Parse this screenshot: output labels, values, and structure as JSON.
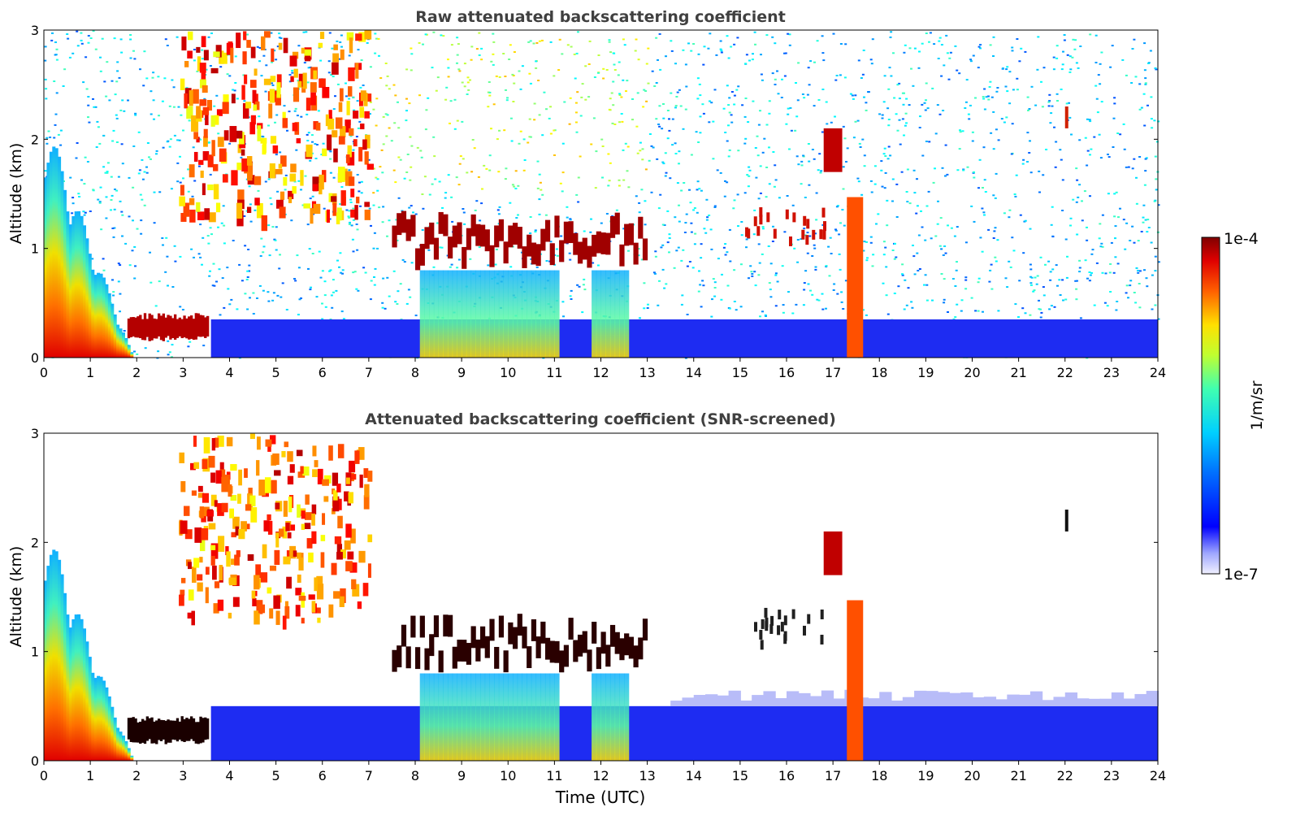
{
  "chart_data": [
    {
      "type": "heatmap",
      "title": "Raw attenuated backscattering coefficient",
      "xlabel": "",
      "ylabel": "Altitude (km)",
      "xlim": [
        0,
        24
      ],
      "ylim": [
        0,
        3
      ],
      "x_ticks": [
        "0",
        "1",
        "2",
        "3",
        "4",
        "5",
        "6",
        "7",
        "8",
        "9",
        "10",
        "11",
        "12",
        "13",
        "14",
        "15",
        "16",
        "17",
        "18",
        "19",
        "20",
        "21",
        "22",
        "23",
        "24"
      ],
      "y_ticks": [
        "0",
        "1",
        "2",
        "3"
      ],
      "screened": false,
      "features": [
        {
          "kind": "boundary_layer",
          "t": [
            3.6,
            24
          ],
          "top_km": 0.35
        },
        {
          "kind": "sloped_plume",
          "t0": 0.0,
          "t1": 1.9,
          "alt0": 2.2,
          "alt1": 0.0
        },
        {
          "kind": "strong_low_layer",
          "t": [
            1.8,
            3.5
          ],
          "alt": [
            0.15,
            0.35
          ]
        },
        {
          "kind": "cloud_field_high",
          "t": [
            2.9,
            7.0
          ],
          "alt": [
            1.3,
            3.0
          ]
        },
        {
          "kind": "cloud_layer_mid",
          "t": [
            7.5,
            12.9
          ],
          "alt": [
            0.7,
            1.5
          ]
        },
        {
          "kind": "cloud_patches",
          "t": [
            15.0,
            16.8
          ],
          "alt": [
            1.1,
            1.4
          ]
        },
        {
          "kind": "precip_column",
          "t": [
            16.8,
            17.6
          ],
          "alt": [
            0.0,
            2.1
          ]
        },
        {
          "kind": "isolated_cloud",
          "t": [
            22.0,
            22.1
          ],
          "alt": [
            2.1,
            2.3
          ]
        }
      ]
    },
    {
      "type": "heatmap",
      "title": "Attenuated backscattering coefficient (SNR-screened)",
      "xlabel": "Time (UTC)",
      "ylabel": "Altitude (km)",
      "xlim": [
        0,
        24
      ],
      "ylim": [
        0,
        3
      ],
      "x_ticks": [
        "0",
        "1",
        "2",
        "3",
        "4",
        "5",
        "6",
        "7",
        "8",
        "9",
        "10",
        "11",
        "12",
        "13",
        "14",
        "15",
        "16",
        "17",
        "18",
        "19",
        "20",
        "21",
        "22",
        "23",
        "24"
      ],
      "y_ticks": [
        "0",
        "1",
        "2",
        "3"
      ],
      "screened": true,
      "features": [
        {
          "kind": "boundary_layer",
          "t": [
            3.6,
            24
          ],
          "top_km": 0.5
        },
        {
          "kind": "sloped_plume",
          "t0": 0.0,
          "t1": 1.9,
          "alt0": 2.2,
          "alt1": 0.0
        },
        {
          "kind": "strong_low_layer",
          "t": [
            1.8,
            3.5
          ],
          "alt": [
            0.15,
            0.35
          ]
        },
        {
          "kind": "cloud_field_high",
          "t": [
            2.9,
            7.0
          ],
          "alt": [
            1.3,
            3.0
          ]
        },
        {
          "kind": "cloud_layer_mid",
          "t": [
            7.5,
            12.9
          ],
          "alt": [
            0.7,
            1.5
          ]
        },
        {
          "kind": "cloud_patches",
          "t": [
            15.0,
            16.8
          ],
          "alt": [
            1.1,
            1.4
          ]
        },
        {
          "kind": "precip_column",
          "t": [
            16.8,
            17.6
          ],
          "alt": [
            0.0,
            2.1
          ]
        },
        {
          "kind": "isolated_cloud",
          "t": [
            22.0,
            22.1
          ],
          "alt": [
            2.1,
            2.3
          ]
        }
      ]
    }
  ],
  "colorbar": {
    "label": "1/m/sr",
    "max_label": "1e-4",
    "min_label": "1e-7",
    "range": [
      1e-07,
      0.0001
    ],
    "scale": "log",
    "colormap": "jet"
  },
  "colors": {
    "title": "#404040",
    "axes": "#000000",
    "bl_blue": "#1428f0",
    "noise_blue": "#2d4cf5"
  }
}
